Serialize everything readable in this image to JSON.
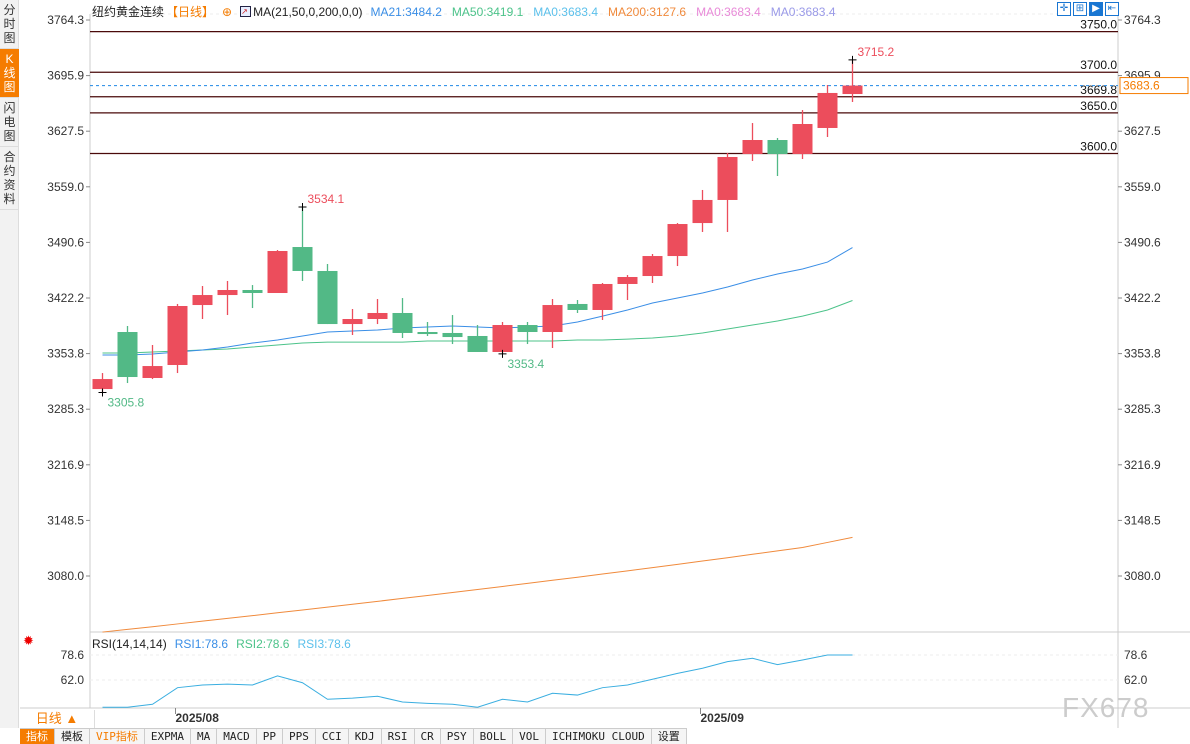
{
  "sidebar": {
    "tabs": [
      {
        "label": "分时图",
        "active": false
      },
      {
        "label": "K线图",
        "active": true
      },
      {
        "label": "闪电图",
        "active": false
      },
      {
        "label": "合约资料",
        "active": false
      }
    ]
  },
  "header": {
    "symbol": "纽约黄金连续",
    "period": "【日线】",
    "ma_params": "MA(21,50,0,200,0,0)",
    "ma_values": [
      {
        "label": "MA21:3484.2",
        "color": "#3a8ee6"
      },
      {
        "label": "MA50:3419.1",
        "color": "#4cc38a"
      },
      {
        "label": "MA0:3683.4",
        "color": "#5bc0eb"
      },
      {
        "label": "MA200:3127.6",
        "color": "#f08a3c"
      },
      {
        "label": "MA0:3683.4",
        "color": "#e88ad8"
      },
      {
        "label": "MA0:3683.4",
        "color": "#9a9ae8"
      }
    ]
  },
  "toolbar": {
    "icons": [
      "crosshair-icon",
      "range-icon",
      "play-icon",
      "exit-icon"
    ]
  },
  "price_axis": {
    "ticks": [
      "3764.3",
      "3695.9",
      "3627.5",
      "3559.0",
      "3490.6",
      "3422.2",
      "3353.8",
      "3285.3",
      "3216.9",
      "3148.5",
      "3080.0"
    ],
    "current": "3683.6",
    "current_color": "#f57c00"
  },
  "levels": [
    {
      "value": 3750.0,
      "label": "3750.0"
    },
    {
      "value": 3700.0,
      "label": "3700.0"
    },
    {
      "value": 3669.8,
      "label": "3669.8"
    },
    {
      "value": 3650.0,
      "label": "3650.0"
    },
    {
      "value": 3600.0,
      "label": "3600.0"
    }
  ],
  "annotations": {
    "high": "3715.2",
    "mid_high": "3534.1",
    "low": "3305.8",
    "mid_low": "3353.4"
  },
  "colors": {
    "up": "#ec4d5c",
    "down": "#52b986",
    "ma21": "#3a8ee6",
    "ma50": "#4cc38a",
    "ma200": "#f08a3c",
    "rsi": "#3aaee0",
    "level": "#4a0a0a"
  },
  "chart_data": {
    "type": "candlestick",
    "ohlc": [
      [
        3310.1,
        3329.8,
        3305.8,
        3322.4
      ],
      [
        3380.3,
        3387.7,
        3317.5,
        3324.9
      ],
      [
        3323.7,
        3364.3,
        3322.4,
        3338.4
      ],
      [
        3339.7,
        3414.8,
        3329.8,
        3412.3
      ],
      [
        3413.5,
        3436.9,
        3396.3,
        3425.8
      ],
      [
        3425.8,
        3443.1,
        3401.2,
        3432.0
      ],
      [
        3432.0,
        3438.1,
        3409.8,
        3428.3
      ],
      [
        3428.3,
        3481.2,
        3428.3,
        3480.0
      ],
      [
        3484.9,
        3534.1,
        3443.1,
        3455.4
      ],
      [
        3455.4,
        3464.0,
        3390.1,
        3390.1
      ],
      [
        3390.1,
        3408.6,
        3376.6,
        3396.3
      ],
      [
        3396.3,
        3420.9,
        3390.1,
        3403.7
      ],
      [
        3403.7,
        3422.1,
        3372.9,
        3379.1
      ],
      [
        3380.3,
        3392.6,
        3375.4,
        3377.8
      ],
      [
        3379.1,
        3401.2,
        3365.5,
        3374.1
      ],
      [
        3375.4,
        3388.9,
        3355.7,
        3355.7
      ],
      [
        3355.7,
        3392.6,
        3353.4,
        3388.9
      ],
      [
        3388.9,
        3392.6,
        3365.5,
        3380.3
      ],
      [
        3380.3,
        3420.9,
        3360.6,
        3413.5
      ],
      [
        3414.8,
        3419.7,
        3403.7,
        3407.4
      ],
      [
        3407.4,
        3440.6,
        3395.1,
        3439.4
      ],
      [
        3439.4,
        3450.4,
        3419.7,
        3448.0
      ],
      [
        3449.2,
        3476.3,
        3440.6,
        3473.8
      ],
      [
        3473.8,
        3514.4,
        3461.5,
        3513.2
      ],
      [
        3514.4,
        3555.1,
        3503.4,
        3542.8
      ],
      [
        3542.8,
        3600.6,
        3503.4,
        3595.7
      ],
      [
        3599.4,
        3637.5,
        3590.8,
        3616.6
      ],
      [
        3616.6,
        3619.1,
        3572.3,
        3599.4
      ],
      [
        3599.4,
        3653.5,
        3593.2,
        3636.3
      ],
      [
        3631.4,
        3684.3,
        3620.3,
        3674.5
      ],
      [
        3673.2,
        3715.2,
        3663.4,
        3683.6
      ]
    ],
    "ma21": [
      3352.0,
      3352.0,
      3353.2,
      3355.7,
      3358.1,
      3361.8,
      3366.7,
      3370.4,
      3375.4,
      3380.3,
      3381.5,
      3382.7,
      3385.2,
      3386.4,
      3387.7,
      3386.4,
      3385.2,
      3386.4,
      3387.7,
      3392.6,
      3399.9,
      3407.4,
      3416.0,
      3422.1,
      3428.3,
      3435.7,
      3444.3,
      3451.7,
      3457.8,
      3466.4,
      3484.2
    ],
    "ma50": [
      3354.4,
      3354.4,
      3355.7,
      3356.9,
      3358.1,
      3359.4,
      3361.8,
      3364.3,
      3366.7,
      3367.9,
      3367.9,
      3367.9,
      3367.9,
      3369.2,
      3369.2,
      3369.2,
      3369.2,
      3369.2,
      3369.2,
      3370.4,
      3370.4,
      3371.6,
      3372.9,
      3375.4,
      3379.1,
      3384.0,
      3388.9,
      3393.8,
      3399.9,
      3407.4,
      3419.1
    ],
    "ma200": [
      3011.0,
      3014.3,
      3017.6,
      3021.0,
      3024.4,
      3027.8,
      3031.2,
      3034.7,
      3038.2,
      3041.7,
      3045.2,
      3048.8,
      3052.4,
      3056.0,
      3059.7,
      3063.4,
      3067.1,
      3070.9,
      3074.7,
      3078.5,
      3082.4,
      3086.3,
      3090.3,
      3094.3,
      3098.4,
      3102.5,
      3106.7,
      3110.9,
      3115.1,
      3121.3,
      3127.6
    ],
    "ylim": [
      3080.0,
      3764.3
    ],
    "x_ticks": [
      {
        "index": 3,
        "label": "2025/08"
      },
      {
        "index": 24,
        "label": "2025/09"
      }
    ]
  },
  "rsi": {
    "params": "RSI(14,14,14)",
    "legend": [
      {
        "label": "RSI1:78.6",
        "color": "#3a8ee6"
      },
      {
        "label": "RSI2:78.6",
        "color": "#4cc38a"
      },
      {
        "label": "RSI3:78.6",
        "color": "#5bc0eb"
      }
    ],
    "ticks": [
      "78.6",
      "62.0"
    ],
    "values": [
      43.9,
      43.9,
      45.9,
      56.9,
      58.7,
      59.3,
      58.7,
      64.7,
      60.2,
      49.2,
      50.0,
      51.2,
      47.4,
      46.5,
      45.9,
      43.9,
      49.2,
      47.4,
      53.2,
      52.0,
      56.9,
      58.7,
      62.5,
      66.4,
      69.8,
      74.2,
      76.4,
      72.2,
      75.3,
      78.6,
      78.6
    ]
  },
  "footer": {
    "period": "日线 ▲",
    "tabs": [
      {
        "label": "指标",
        "active": true
      },
      {
        "label": "模板"
      },
      {
        "label": "VIP指标",
        "vip": true
      },
      {
        "label": "EXPMA"
      },
      {
        "label": "MA"
      },
      {
        "label": "MACD"
      },
      {
        "label": "PP"
      },
      {
        "label": "PPS"
      },
      {
        "label": "CCI"
      },
      {
        "label": "KDJ"
      },
      {
        "label": "RSI"
      },
      {
        "label": "CR"
      },
      {
        "label": "PSY"
      },
      {
        "label": "BOLL"
      },
      {
        "label": "VOL"
      },
      {
        "label": "ICHIMOKU CLOUD"
      },
      {
        "label": "设置"
      }
    ]
  },
  "watermark": "FX678"
}
